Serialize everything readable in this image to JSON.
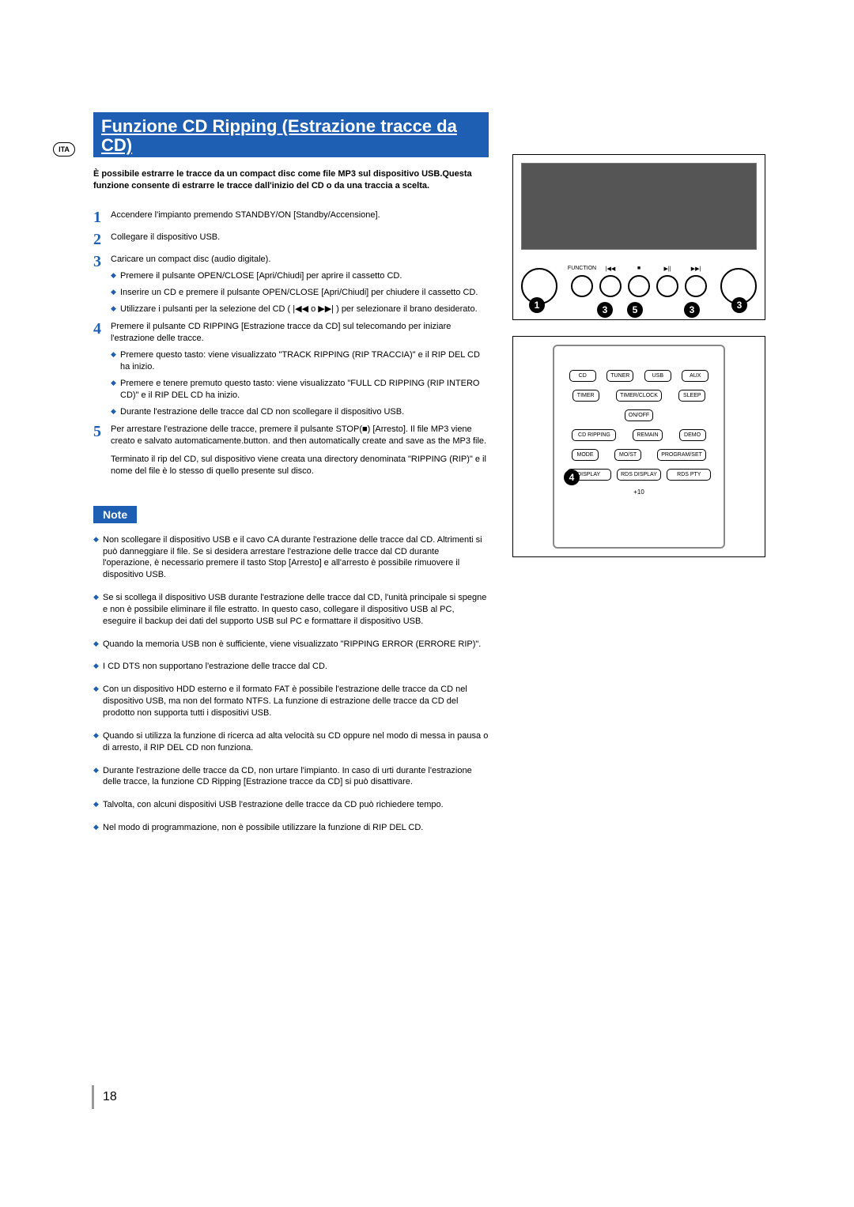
{
  "lang_code": "ITA",
  "title": "Funzione CD Ripping (Estrazione tracce da CD)",
  "intro": "È possibile estrarre le tracce da un compact disc come file MP3 sul dispositivo USB.Questa funzione consente di estrarre le tracce dall'inizio del CD o da una traccia a scelta.",
  "steps": [
    {
      "n": "1",
      "body": "Accendere l'impianto premendo STANDBY/ON [Standby/Accensione].",
      "subs": []
    },
    {
      "n": "2",
      "body": "Collegare il dispositivo USB.",
      "subs": []
    },
    {
      "n": "3",
      "body": "Caricare un compact disc (audio digitale).",
      "subs": [
        "Premere il pulsante OPEN/CLOSE [Apri/Chiudi] per aprire il cassetto CD.",
        "Inserire un CD e premere il pulsante OPEN/CLOSE [Apri/Chiudi] per chiudere il cassetto CD.",
        "Utilizzare i pulsanti per la selezione del CD (  |◀◀  o  ▶▶|  ) per selezionare il brano desiderato."
      ]
    },
    {
      "n": "4",
      "body": "Premere il pulsante CD RIPPING [Estrazione tracce da CD] sul telecomando per iniziare l'estrazione delle tracce.",
      "subs": [
        "Premere questo tasto: viene visualizzato \"TRACK RIPPING (RIP TRACCIA)\" e il RIP DEL CD ha inizio.",
        "Premere e tenere premuto questo tasto: viene visualizzato \"FULL CD RIPPING (RIP INTERO CD)\" e il RIP DEL CD ha inizio.",
        "Durante l'estrazione delle tracce dal CD non scollegare il dispositivo USB."
      ]
    },
    {
      "n": "5",
      "body": "Per arrestare l'estrazione delle tracce, premere il pulsante STOP(■) [Arresto]. Il file MP3 viene creato e salvato automaticamente.button. and then automatically create and save as the MP3 file.",
      "extra": "Terminato il rip del CD, sul dispositivo viene creata una directory denominata \"RIPPING (RIP)\" e il nome del file è lo stesso di quello presente sul disco.",
      "subs": []
    }
  ],
  "note_label": "Note",
  "notes": [
    "Non scollegare il dispositivo USB e il cavo CA durante l'estrazione delle tracce dal CD. Altrimenti si può danneggiare il file. Se si desidera arrestare l'estrazione delle tracce dal CD durante l'operazione, è necessario premere il tasto Stop [Arresto] e all'arresto è possibile rimuovere il dispositivo USB.",
    "Se si scollega il dispositivo USB durante l'estrazione delle tracce dal CD, l'unità principale si spegne e non è possibile eliminare il file estratto. In questo caso, collegare il dispositivo USB al PC, eseguire il backup dei dati del supporto USB sul PC e formattare il dispositivo USB.",
    "Quando la memoria USB non è sufficiente, viene visualizzato \"RIPPING ERROR (ERRORE RIP)\".",
    "I CD DTS non supportano l'estrazione delle tracce dal CD.",
    "Con un dispositivo HDD esterno e il formato FAT è possibile l'estrazione delle tracce da CD nel dispositivo USB, ma non del formato NTFS. La funzione di estrazione delle tracce da CD del prodotto non supporta tutti i dispositivi USB.",
    "Quando si utilizza la funzione di ricerca ad alta velocità su CD oppure nel modo di messa in pausa o di arresto, il RIP DEL CD non funziona.",
    "Durante l'estrazione delle tracce da CD, non urtare l'impianto. In caso di urti durante l'estrazione delle tracce, la funzione CD Ripping [Estrazione tracce da CD] si può disattivare.",
    "Talvolta, con alcuni dispositivi USB l'estrazione delle tracce da CD può richiedere tempo.",
    " Nel modo di programmazione, non è possibile utilizzare la funzione di RIP DEL CD."
  ],
  "page_number": "18",
  "device": {
    "function_label": "FUNCTION",
    "transport": {
      "prev": "|◀◀",
      "stop": "■",
      "playpause": "▶||",
      "next": "▶▶|"
    },
    "callouts_fig1": [
      "1",
      "3",
      "5",
      "3",
      "3"
    ]
  },
  "remote": {
    "rows": [
      [
        "CD",
        "TUNER",
        "USB",
        "AUX"
      ],
      [
        "TIMER",
        "TIMER/CLOCK",
        "SLEEP"
      ],
      [
        "ON/OFF"
      ],
      [
        "CD RIPPING",
        "REMAIN",
        "DEMO"
      ],
      [
        "MODE",
        "MO/ST",
        "PROGRAM/SET"
      ],
      [
        "DISPLAY",
        "RDS DISPLAY",
        "RDS PTY"
      ]
    ],
    "callout": "4",
    "plus10": "+10"
  }
}
